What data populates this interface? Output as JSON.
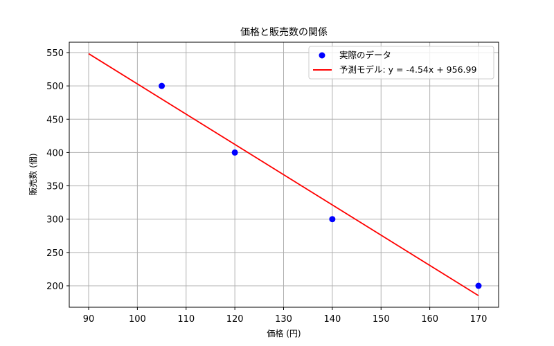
{
  "chart_data": {
    "type": "scatter",
    "title": "価格と販売数の関係",
    "xlabel": "価格 (円)",
    "ylabel": "販売数 (個)",
    "xlim": [
      86,
      174
    ],
    "ylim": [
      168,
      565
    ],
    "xticks": [
      90,
      100,
      110,
      120,
      130,
      140,
      150,
      160,
      170
    ],
    "yticks": [
      200,
      250,
      300,
      350,
      400,
      450,
      500,
      550
    ],
    "grid": true,
    "legend_position": "upper right",
    "series": [
      {
        "name": "実際のデータ",
        "type": "scatter",
        "color": "#0000ff",
        "x": [
          105,
          120,
          140,
          170
        ],
        "y": [
          500,
          400,
          300,
          200
        ]
      },
      {
        "name": "予測モデル: y = -4.54x + 956.99",
        "type": "line",
        "color": "#ff0000",
        "slope": -4.54,
        "intercept": 956.99,
        "x": [
          90,
          170
        ],
        "y": [
          548.39,
          185.19
        ]
      }
    ]
  },
  "legend": {
    "scatter_label": "実際のデータ",
    "line_label": "予測モデル: y = -4.54x + 956.99"
  },
  "colors": {
    "scatter": "#0000ff",
    "line": "#ff0000",
    "grid": "#b0b0b0",
    "axis": "#000000"
  }
}
